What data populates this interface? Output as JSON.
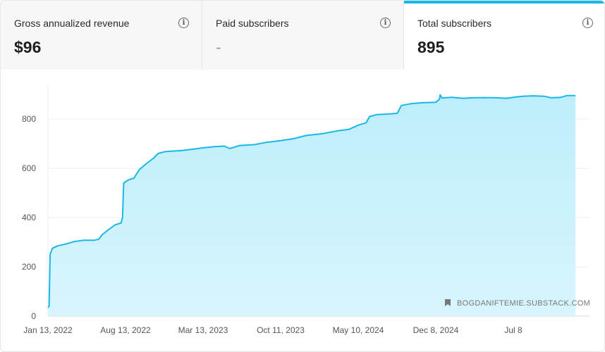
{
  "colors": {
    "accent": "#1ab8e6",
    "fill": "#c9f1fb"
  },
  "tabs": [
    {
      "label": "Gross annualized revenue",
      "value": "$96",
      "icon": "info-icon",
      "active": false
    },
    {
      "label": "Paid subscribers",
      "value": "-",
      "icon": "info-icon",
      "active": false
    },
    {
      "label": "Total subscribers",
      "value": "895",
      "icon": "info-icon",
      "active": true
    }
  ],
  "chart_data": {
    "type": "area",
    "series": [
      {
        "points": [
          [
            "2022-01-13",
            35
          ],
          [
            "2022-01-16",
            40
          ],
          [
            "2022-01-19",
            250
          ],
          [
            "2022-01-25",
            275
          ],
          [
            "2022-02-08",
            285
          ],
          [
            "2022-03-01",
            292
          ],
          [
            "2022-03-25",
            302
          ],
          [
            "2022-04-20",
            308
          ],
          [
            "2022-05-20",
            308
          ],
          [
            "2022-06-01",
            312
          ],
          [
            "2022-06-10",
            330
          ],
          [
            "2022-06-25",
            348
          ],
          [
            "2022-07-15",
            370
          ],
          [
            "2022-08-01",
            378
          ],
          [
            "2022-08-05",
            400
          ],
          [
            "2022-08-08",
            540
          ],
          [
            "2022-08-20",
            552
          ],
          [
            "2022-09-05",
            560
          ],
          [
            "2022-09-20",
            595
          ],
          [
            "2022-10-10",
            620
          ],
          [
            "2022-10-28",
            640
          ],
          [
            "2022-11-10",
            660
          ],
          [
            "2022-12-01",
            668
          ],
          [
            "2023-01-15",
            672
          ],
          [
            "2023-02-15",
            678
          ],
          [
            "2023-03-15",
            683
          ],
          [
            "2023-04-15",
            688
          ],
          [
            "2023-05-10",
            690
          ],
          [
            "2023-05-25",
            680
          ],
          [
            "2023-06-20",
            692
          ],
          [
            "2023-08-01",
            696
          ],
          [
            "2023-09-01",
            705
          ],
          [
            "2023-10-11",
            712
          ],
          [
            "2023-11-15",
            720
          ],
          [
            "2023-12-20",
            733
          ],
          [
            "2024-02-01",
            740
          ],
          [
            "2024-03-15",
            752
          ],
          [
            "2024-04-15",
            758
          ],
          [
            "2024-05-10",
            775
          ],
          [
            "2024-06-01",
            785
          ],
          [
            "2024-06-10",
            810
          ],
          [
            "2024-07-01",
            818
          ],
          [
            "2024-08-01",
            820
          ],
          [
            "2024-08-25",
            823
          ],
          [
            "2024-09-05",
            855
          ],
          [
            "2024-10-01",
            862
          ],
          [
            "2024-11-01",
            866
          ],
          [
            "2024-12-08",
            868
          ],
          [
            "2024-12-18",
            880
          ],
          [
            "2024-12-20",
            898
          ],
          [
            "2024-12-25",
            885
          ],
          [
            "2025-01-20",
            888
          ],
          [
            "2025-02-20",
            884
          ],
          [
            "2025-03-20",
            886
          ],
          [
            "2025-04-20",
            887
          ],
          [
            "2025-05-20",
            886
          ],
          [
            "2025-06-20",
            884
          ],
          [
            "2025-07-08",
            888
          ],
          [
            "2025-08-01",
            892
          ],
          [
            "2025-09-01",
            894
          ],
          [
            "2025-10-01",
            892
          ],
          [
            "2025-10-20",
            886
          ],
          [
            "2025-11-15",
            888
          ],
          [
            "2025-12-01",
            895
          ],
          [
            "2025-12-25",
            895
          ]
        ]
      }
    ],
    "x_ticks": [
      "Jan 13, 2022",
      "Aug 13, 2022",
      "Mar 13, 2023",
      "Oct 11, 2023",
      "May 10, 2024",
      "Dec 8, 2024",
      "Jul 8"
    ],
    "y_ticks": [
      0,
      200,
      400,
      600,
      800
    ],
    "ylim": [
      0,
      940
    ],
    "grid": true,
    "watermark": "BOGDANIFTEMIE.SUBSTACK.COM",
    "watermark_icon": "bookmark-icon"
  }
}
